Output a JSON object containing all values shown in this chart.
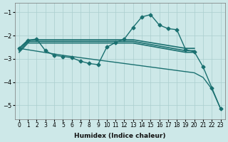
{
  "xlabel": "Humidex (Indice chaleur)",
  "xlim": [
    -0.5,
    23.5
  ],
  "ylim": [
    -5.6,
    -0.6
  ],
  "yticks": [
    -5,
    -4,
    -3,
    -2,
    -1
  ],
  "xticks": [
    0,
    1,
    2,
    3,
    4,
    5,
    6,
    7,
    8,
    9,
    10,
    11,
    12,
    13,
    14,
    15,
    16,
    17,
    18,
    19,
    20,
    21,
    22,
    23
  ],
  "bg_color": "#cde8e8",
  "grid_color": "#aacece",
  "line_color": "#1a7070",
  "lines": [
    {
      "x": [
        0,
        1,
        2,
        3,
        4,
        5,
        6,
        7,
        8,
        9,
        10,
        11,
        12,
        13,
        14,
        15,
        16,
        17,
        18,
        19,
        20,
        21,
        22,
        23
      ],
      "y": [
        -2.55,
        -2.2,
        -2.15,
        -2.65,
        -2.85,
        -2.9,
        -2.95,
        -3.1,
        -3.2,
        -3.25,
        -2.5,
        -2.3,
        -2.15,
        -1.65,
        -1.2,
        -1.1,
        -1.55,
        -1.7,
        -1.75,
        -2.6,
        -2.7,
        -3.35,
        -4.25,
        -5.15
      ],
      "marker": "D",
      "markersize": 2.5,
      "linewidth": 1.0
    },
    {
      "x": [
        0,
        1,
        2,
        3,
        4,
        5,
        6,
        7,
        8,
        9,
        10,
        11,
        12,
        13,
        19,
        20
      ],
      "y": [
        -2.55,
        -2.2,
        -2.18,
        -2.18,
        -2.18,
        -2.18,
        -2.18,
        -2.18,
        -2.18,
        -2.18,
        -2.18,
        -2.18,
        -2.18,
        -2.18,
        -2.55,
        -2.55
      ],
      "marker": null,
      "markersize": 0,
      "linewidth": 1.2
    },
    {
      "x": [
        0,
        1,
        2,
        3,
        4,
        5,
        6,
        7,
        8,
        9,
        10,
        11,
        12,
        13,
        19,
        20
      ],
      "y": [
        -2.65,
        -2.25,
        -2.25,
        -2.25,
        -2.25,
        -2.25,
        -2.25,
        -2.25,
        -2.25,
        -2.25,
        -2.25,
        -2.25,
        -2.25,
        -2.25,
        -2.65,
        -2.65
      ],
      "marker": null,
      "markersize": 0,
      "linewidth": 1.2
    },
    {
      "x": [
        0,
        1,
        2,
        3,
        4,
        5,
        6,
        7,
        8,
        9,
        10,
        11,
        12,
        13,
        19,
        20
      ],
      "y": [
        -2.72,
        -2.32,
        -2.32,
        -2.32,
        -2.32,
        -2.32,
        -2.32,
        -2.32,
        -2.32,
        -2.32,
        -2.32,
        -2.32,
        -2.32,
        -2.32,
        -2.72,
        -2.72
      ],
      "marker": null,
      "markersize": 0,
      "linewidth": 1.2
    },
    {
      "x": [
        0,
        5,
        10,
        15,
        20,
        21,
        22,
        23
      ],
      "y": [
        -2.55,
        -2.85,
        -3.1,
        -3.35,
        -3.6,
        -3.8,
        -4.3,
        -5.15
      ],
      "marker": null,
      "markersize": 0,
      "linewidth": 1.0
    }
  ]
}
